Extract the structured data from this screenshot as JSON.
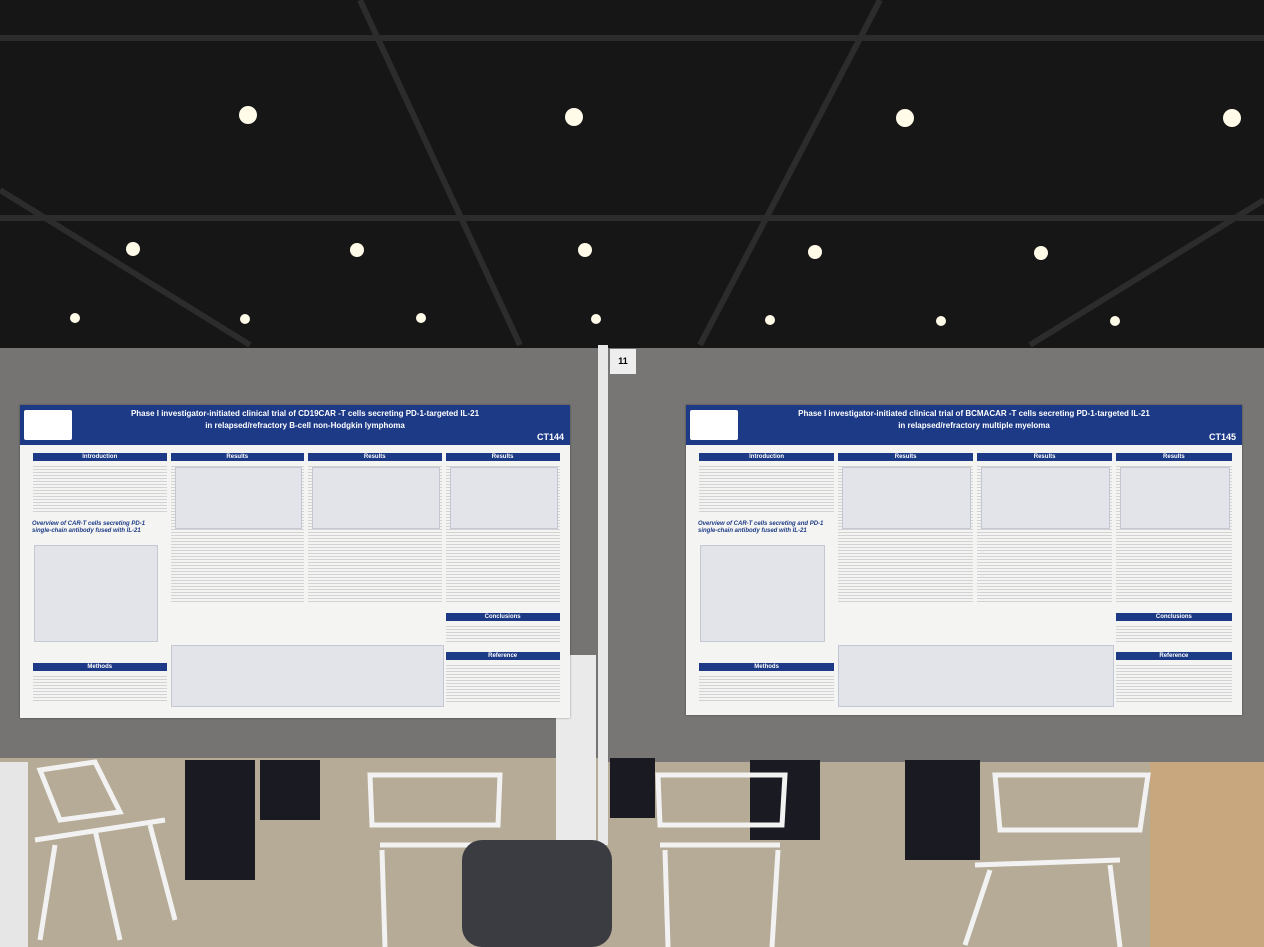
{
  "board_number": "11",
  "posters": [
    {
      "title_line1": "Phase I investigator-initiated clinical trial of CD19CAR -T cells secreting PD-1-targeted IL-21",
      "title_line2": "in relapsed/refractory B-cell non-Hodgkin lymphoma",
      "code": "CT144",
      "overview": "Overview of CAR-T cells secreting PD-1 single-chain antibody fused with IL-21",
      "sections": [
        "Introduction",
        "Results",
        "Results",
        "Results",
        "Methods",
        "Conclusions",
        "Reference"
      ]
    },
    {
      "title_line1": "Phase I investigator-initiated clinical trial of BCMACAR -T cells secreting PD-1-targeted IL-21",
      "title_line2": "in relapsed/refractory multiple myeloma",
      "code": "CT145",
      "overview": "Overview of CAR-T cells secreting and PD-1 single-chain antibody fused with IL-21",
      "sections": [
        "Introduction",
        "Results",
        "Results",
        "Results",
        "Methods",
        "Conclusions",
        "Reference"
      ]
    }
  ]
}
